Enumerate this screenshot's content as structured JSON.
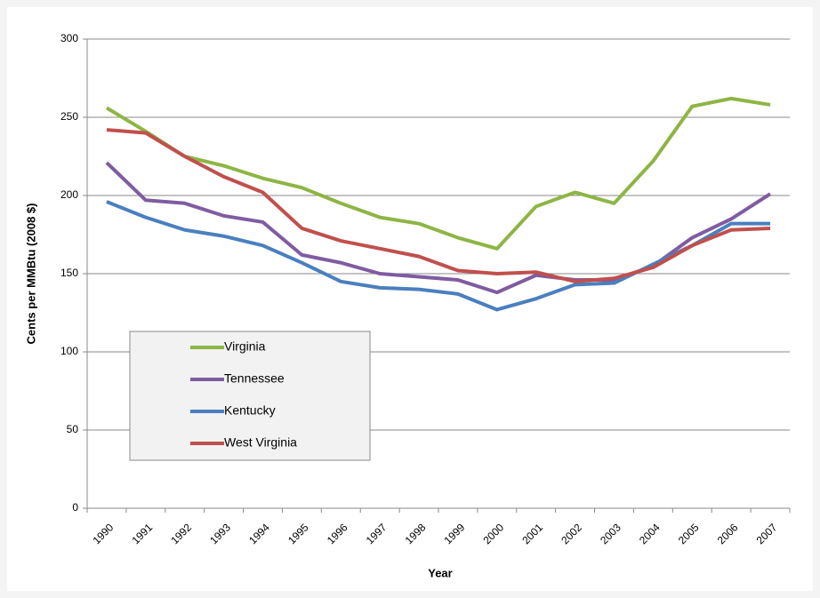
{
  "chart_data": {
    "type": "line",
    "x_label": "Year",
    "y_label": "Cents per MMBtu (2008 $)",
    "categories": [
      "1990",
      "1991",
      "1992",
      "1993",
      "1994",
      "1995",
      "1996",
      "1997",
      "1998",
      "1999",
      "2000",
      "2001",
      "2002",
      "2003",
      "2004",
      "2005",
      "2006",
      "2007"
    ],
    "series": [
      {
        "name": "Virginia",
        "color": "#8db545",
        "values": [
          256,
          241,
          225,
          219,
          211,
          205,
          195,
          186,
          182,
          173,
          166,
          193,
          202,
          195,
          222,
          257,
          262,
          258
        ]
      },
      {
        "name": "Tennessee",
        "color": "#7f5ca1",
        "values": [
          221,
          197,
          195,
          187,
          183,
          162,
          157,
          150,
          148,
          146,
          138,
          149,
          146,
          146,
          155,
          173,
          185,
          201
        ]
      },
      {
        "name": "Kentucky",
        "color": "#4a7fbf",
        "values": [
          196,
          186,
          178,
          174,
          168,
          157,
          145,
          141,
          140,
          137,
          127,
          134,
          143,
          144,
          156,
          168,
          182,
          182
        ]
      },
      {
        "name": "West Virginia",
        "color": "#c0504d",
        "values": [
          242,
          240,
          225,
          212,
          202,
          179,
          171,
          166,
          161,
          152,
          150,
          151,
          145,
          147,
          154,
          168,
          178,
          179
        ]
      }
    ],
    "ylim": [
      0,
      300
    ],
    "yticks": [
      0,
      50,
      100,
      150,
      200,
      250,
      300
    ],
    "grid": true,
    "legend": "lower left"
  }
}
